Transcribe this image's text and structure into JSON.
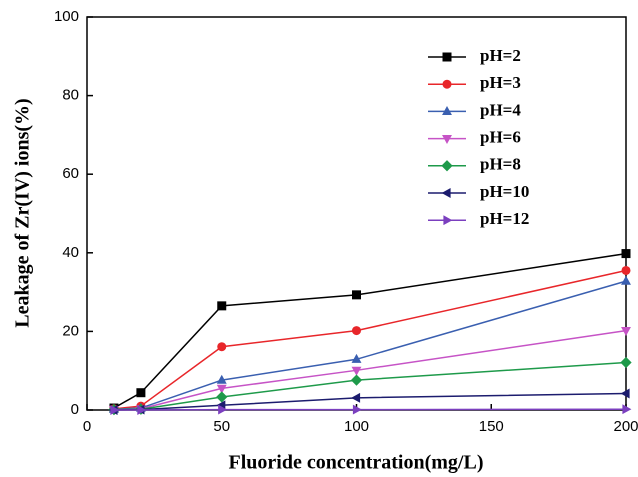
{
  "chart_data": {
    "type": "line",
    "x_label": "Fluoride concentration(mg/L)",
    "y_label": "Leakage of Zr(IV) ions(%)",
    "x": [
      10,
      20,
      50,
      100,
      200
    ],
    "series": [
      {
        "name": "pH=2",
        "color": "#000000",
        "marker": "square",
        "values": [
          0.5,
          4.4,
          26.5,
          29.3,
          39.8
        ]
      },
      {
        "name": "pH=3",
        "color": "#e8262a",
        "marker": "circle",
        "values": [
          0.3,
          1.0,
          16.1,
          20.2,
          35.5
        ]
      },
      {
        "name": "pH=4",
        "color": "#3a5fb0",
        "marker": "triangle-up",
        "values": [
          0.2,
          0.5,
          7.6,
          12.9,
          32.8
        ]
      },
      {
        "name": "pH=6",
        "color": "#c653c6",
        "marker": "triangle-down",
        "values": [
          0.1,
          0.3,
          5.5,
          10.1,
          20.2
        ]
      },
      {
        "name": "pH=8",
        "color": "#1e9a4a",
        "marker": "diamond",
        "values": [
          0.1,
          0.2,
          3.3,
          7.6,
          12.1
        ]
      },
      {
        "name": "pH=10",
        "color": "#1c1c6e",
        "marker": "triangle-left",
        "values": [
          0,
          0.1,
          1.2,
          3.1,
          4.2
        ]
      },
      {
        "name": "pH=12",
        "color": "#7b3fbf",
        "marker": "triangle-right",
        "values": [
          0,
          0,
          0.1,
          0.1,
          0.2
        ]
      }
    ],
    "xlim": [
      0,
      200
    ],
    "xticks": [
      0,
      50,
      100,
      150,
      200
    ],
    "ylim": [
      0,
      100
    ],
    "yticks": [
      0,
      20,
      40,
      60,
      80,
      100
    ],
    "grid": false,
    "legend": "upper right"
  }
}
